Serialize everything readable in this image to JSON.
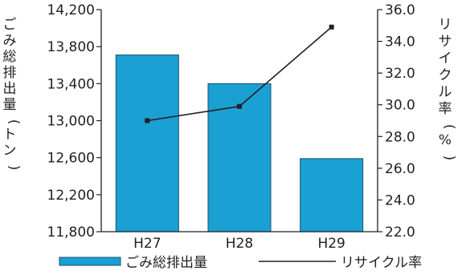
{
  "chart_data": {
    "type": "bar+line",
    "categories": [
      "H27",
      "H28",
      "H29"
    ],
    "series": [
      {
        "name": "ごみ総排出量",
        "type": "bar",
        "axis": "left",
        "values": [
          13710,
          13400,
          12590
        ],
        "color": "#1aa0d2"
      },
      {
        "name": "リサイクル率",
        "type": "line",
        "axis": "right",
        "values": [
          29.0,
          29.9,
          34.9
        ],
        "color": "#231f20"
      }
    ],
    "y_left": {
      "label": "ごみ総排出量（トン）",
      "range": [
        11800,
        14200
      ],
      "ticks": [
        "11,800",
        "12,200",
        "12,600",
        "13,000",
        "13,400",
        "13,800",
        "14,200"
      ],
      "tick_values": [
        11800,
        12200,
        12600,
        13000,
        13400,
        13800,
        14200
      ]
    },
    "y_right": {
      "label": "リサイクル率（%）",
      "range": [
        22.0,
        36.0
      ],
      "ticks": [
        "22.0",
        "24.0",
        "26.0",
        "28.0",
        "30.0",
        "32.0",
        "34.0",
        "36.0"
      ],
      "tick_values": [
        22,
        24,
        26,
        28,
        30,
        32,
        34,
        36
      ]
    },
    "grid": false,
    "legend": "bottom",
    "title": "",
    "xlabel": ""
  }
}
